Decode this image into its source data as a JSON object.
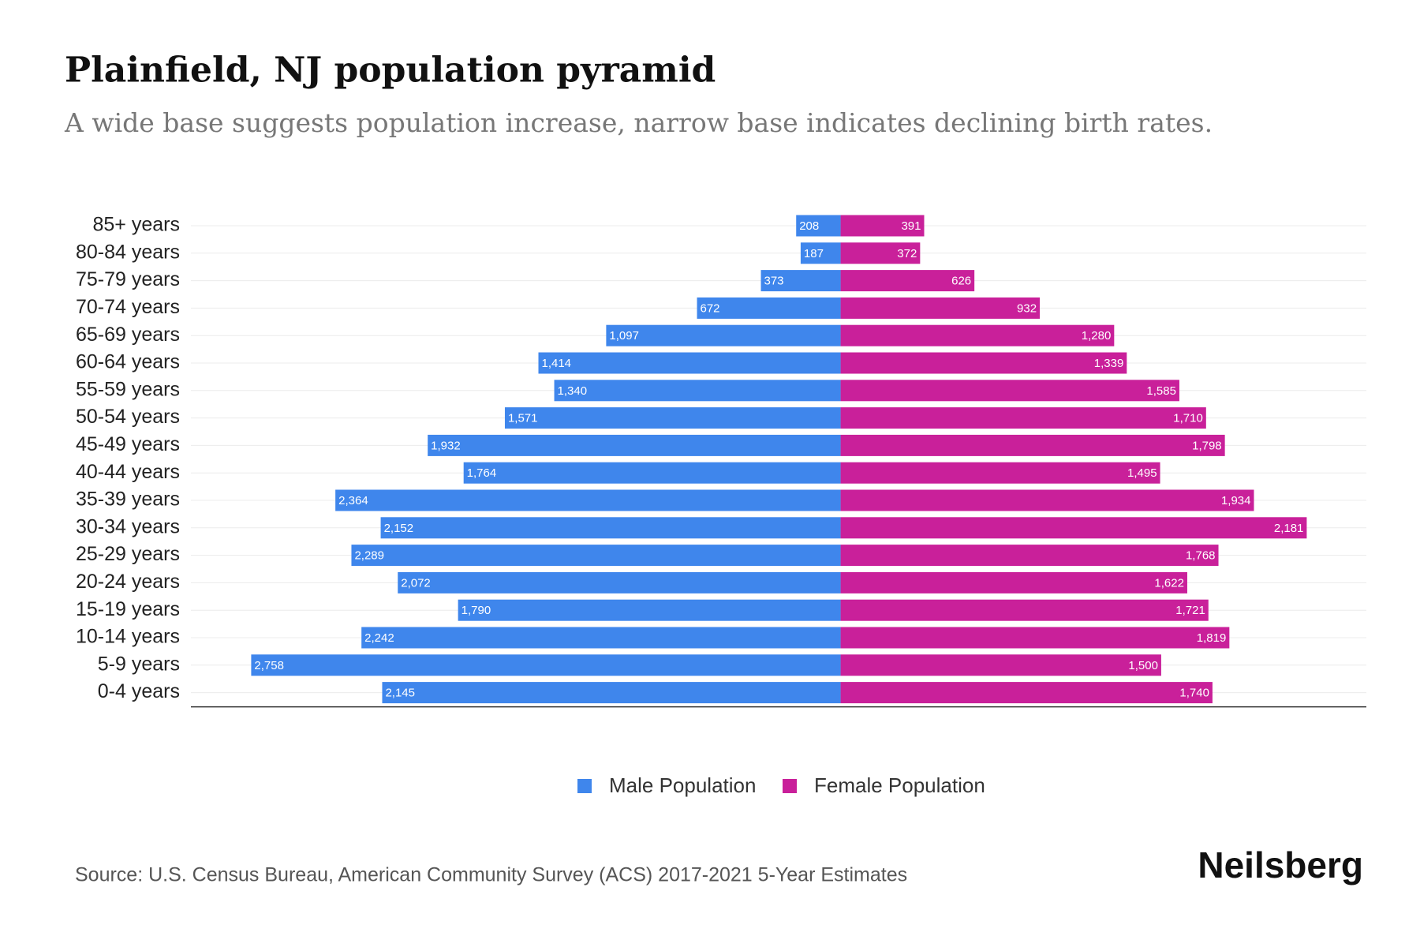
{
  "chart_data": {
    "type": "pyramid",
    "title": "Plainfield, NJ population pyramid",
    "subtitle": "A wide base suggests population increase, narrow base indicates declining birth rates.",
    "categories": [
      "85+ years",
      "80-84 years",
      "75-79 years",
      "70-74 years",
      "65-69 years",
      "60-64 years",
      "55-59 years",
      "50-54 years",
      "45-49 years",
      "40-44 years",
      "35-39 years",
      "30-34 years",
      "25-29 years",
      "20-24 years",
      "15-19 years",
      "10-14 years",
      "5-9 years",
      "0-4 years"
    ],
    "series": [
      {
        "name": "Male Population",
        "color": "#3f86ec",
        "side": "left",
        "values": [
          208,
          187,
          373,
          672,
          1097,
          1414,
          1340,
          1571,
          1932,
          1764,
          2364,
          2152,
          2289,
          2072,
          1790,
          2242,
          2758,
          2145
        ],
        "value_labels": [
          "208",
          "187",
          "373",
          "672",
          "1,097",
          "1,414",
          "1,340",
          "1,571",
          "1,932",
          "1,764",
          "2,364",
          "2,152",
          "2,289",
          "2,072",
          "1,790",
          "2,242",
          "2,758",
          "2,145"
        ]
      },
      {
        "name": "Female Population",
        "color": "#c9209a",
        "side": "right",
        "values": [
          391,
          372,
          626,
          932,
          1280,
          1339,
          1585,
          1710,
          1798,
          1495,
          1934,
          2181,
          1768,
          1622,
          1721,
          1819,
          1500,
          1740
        ],
        "value_labels": [
          "391",
          "372",
          "626",
          "932",
          "1,280",
          "1,339",
          "1,585",
          "1,710",
          "1,798",
          "1,495",
          "1,934",
          "2,181",
          "1,768",
          "1,622",
          "1,721",
          "1,819",
          "1,500",
          "1,740"
        ]
      }
    ],
    "xlim": [
      -3040,
      2460
    ],
    "source": "Source: U.S. Census Bureau, American Community Survey (ACS) 2017-2021 5-Year Estimates",
    "brand": "Neilsberg"
  }
}
